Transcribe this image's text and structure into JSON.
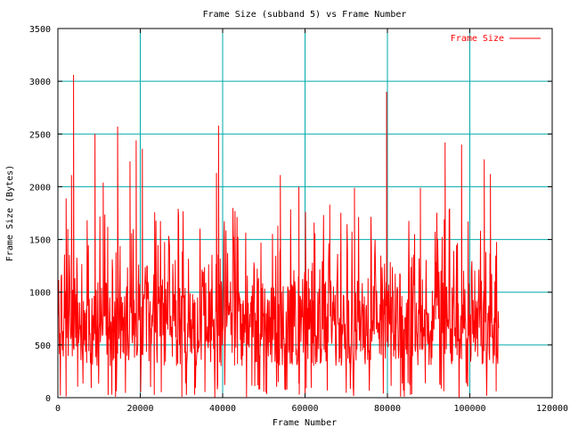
{
  "chart_data": {
    "type": "line",
    "title": "Frame Size (subband 5) vs Frame Number",
    "xlabel": "Frame Number",
    "ylabel": "Frame Size (Bytes)",
    "xlim": [
      0,
      120000
    ],
    "ylim": [
      0,
      3500
    ],
    "xticks": [
      0,
      20000,
      40000,
      60000,
      80000,
      100000,
      120000
    ],
    "xtick_labels": [
      "0",
      "20000",
      "40000",
      "60000",
      "80000",
      "100000",
      "120000"
    ],
    "yticks": [
      0,
      500,
      1000,
      1500,
      2000,
      2500,
      3000,
      3500
    ],
    "ytick_labels": [
      "0",
      "500",
      "1000",
      "1500",
      "2000",
      "2500",
      "3000",
      "3500"
    ],
    "grid": true,
    "legend_position": "top-right",
    "colors": {
      "series": "#ff0000",
      "grid": "#00aaaa",
      "axes": "#000000"
    },
    "series": [
      {
        "name": "Frame Size",
        "x_start": 0,
        "x_end": 107000,
        "sample_step": 100,
        "typical_range": [
          300,
          1400
        ],
        "peaks": [
          {
            "x": 3800,
            "y": 3060
          },
          {
            "x": 3300,
            "y": 2110
          },
          {
            "x": 2000,
            "y": 1890
          },
          {
            "x": 9000,
            "y": 2500
          },
          {
            "x": 11000,
            "y": 2040
          },
          {
            "x": 14500,
            "y": 2570
          },
          {
            "x": 17500,
            "y": 2240
          },
          {
            "x": 19000,
            "y": 2440
          },
          {
            "x": 20500,
            "y": 2360
          },
          {
            "x": 38500,
            "y": 2130
          },
          {
            "x": 39000,
            "y": 2580
          },
          {
            "x": 54000,
            "y": 2110
          },
          {
            "x": 58500,
            "y": 2000
          },
          {
            "x": 66000,
            "y": 1830
          },
          {
            "x": 72000,
            "y": 1990
          },
          {
            "x": 79800,
            "y": 2900
          },
          {
            "x": 88000,
            "y": 1990
          },
          {
            "x": 94000,
            "y": 2420
          },
          {
            "x": 98000,
            "y": 2400
          },
          {
            "x": 103500,
            "y": 2260
          },
          {
            "x": 105000,
            "y": 2120
          }
        ]
      }
    ]
  }
}
